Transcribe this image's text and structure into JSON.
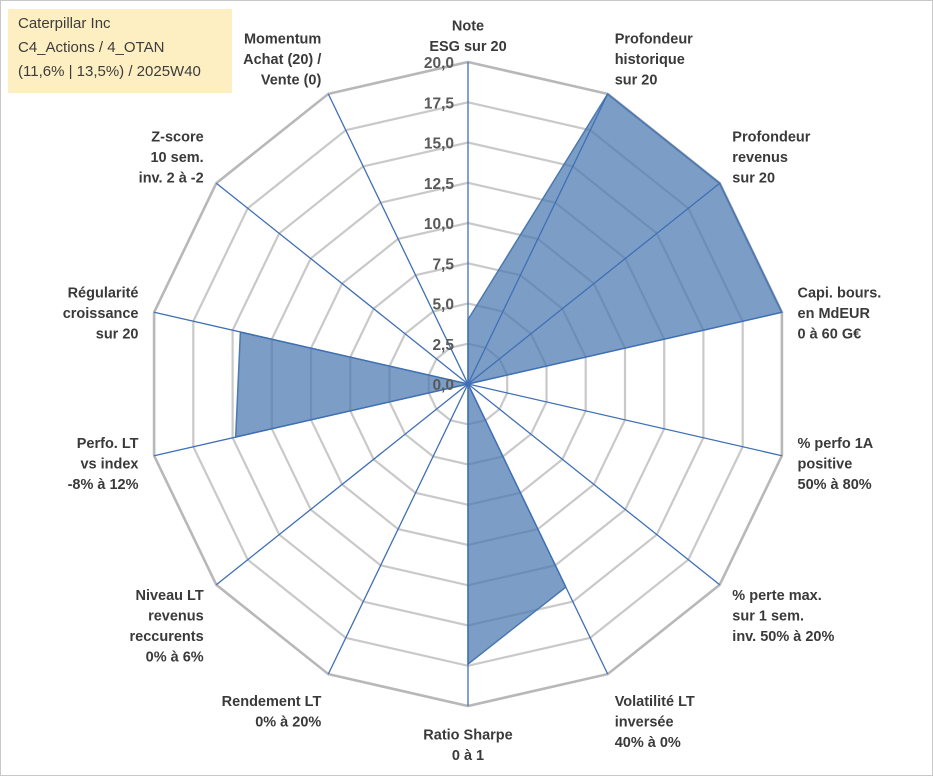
{
  "chart_data": {
    "type": "radar",
    "title_lines": [
      "Caterpillar Inc",
      "C4_Actions / 4_OTAN",
      "(11,6% | 13,5%) / 2025W40"
    ],
    "r_range": [
      0,
      20
    ],
    "ticks": [
      "0,0",
      "2,5",
      "5,0",
      "7,5",
      "10,0",
      "12,5",
      "15,0",
      "17,5",
      "20,0"
    ],
    "grid": true,
    "fill_color": "#4a78b0",
    "axes": [
      {
        "label_lines": [
          "Note",
          "ESG sur 20"
        ],
        "value": 4
      },
      {
        "label_lines": [
          "Profondeur",
          "historique",
          "sur 20"
        ],
        "value": 20
      },
      {
        "label_lines": [
          "Profondeur",
          "revenus",
          "sur 20"
        ],
        "value": 20
      },
      {
        "label_lines": [
          "Capi. bours.",
          "en MdEUR",
          "0 à 60 G€"
        ],
        "value": 20
      },
      {
        "label_lines": [
          "% perfo 1A",
          "positive",
          "50% à 80%"
        ],
        "value": 0
      },
      {
        "label_lines": [
          "% perte max.",
          "sur 1 sem.",
          "inv. 50% à 20%"
        ],
        "value": 0
      },
      {
        "label_lines": [
          "Volatilité LT",
          "inversée",
          "40% à 0%"
        ],
        "value": 14
      },
      {
        "label_lines": [
          "Ratio Sharpe",
          "0 à 1"
        ],
        "value": 17.4
      },
      {
        "label_lines": [
          "Rendement LT",
          "0% à 20%"
        ],
        "value": 0
      },
      {
        "label_lines": [
          "Niveau LT",
          "revenus",
          "reccurents",
          "0% à 6%"
        ],
        "value": 0
      },
      {
        "label_lines": [
          "Perfo. LT",
          "vs index",
          "-8% à 12%"
        ],
        "value": 14.8
      },
      {
        "label_lines": [
          "Régularité",
          "croissance",
          "sur 20"
        ],
        "value": 14.5
      },
      {
        "label_lines": [
          "Z-score",
          "10 sem.",
          "inv. 2 à -2"
        ],
        "value": 0
      },
      {
        "label_lines": [
          "Momentum",
          "Achat (20) /",
          "Vente (0)"
        ],
        "value": 0
      }
    ]
  }
}
